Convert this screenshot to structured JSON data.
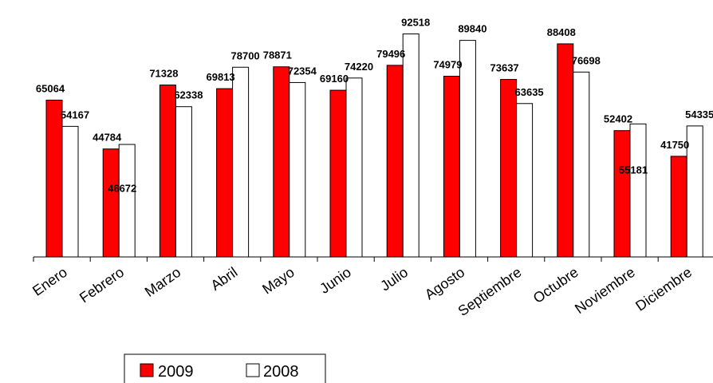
{
  "chart_data": {
    "type": "bar",
    "categories": [
      "Enero",
      "Febrero",
      "Marzo",
      "Abril",
      "Mayo",
      "Junio",
      "Julio",
      "Agosto",
      "Septiembre",
      "Octubre",
      "Noviembre",
      "Diciembre"
    ],
    "series": [
      {
        "name": "2009",
        "color": "#ff0000",
        "values": [
          65064,
          44784,
          71328,
          69813,
          78871,
          69160,
          79496,
          74979,
          73637,
          88408,
          52402,
          41750
        ]
      },
      {
        "name": "2008",
        "color": "#ffffff",
        "values": [
          54167,
          46672,
          62338,
          78700,
          72354,
          74220,
          92518,
          89840,
          63635,
          76698,
          55181,
          54335
        ]
      }
    ],
    "ylim": [
      0,
      96000
    ],
    "grid": false,
    "legend": "bottom-left"
  }
}
